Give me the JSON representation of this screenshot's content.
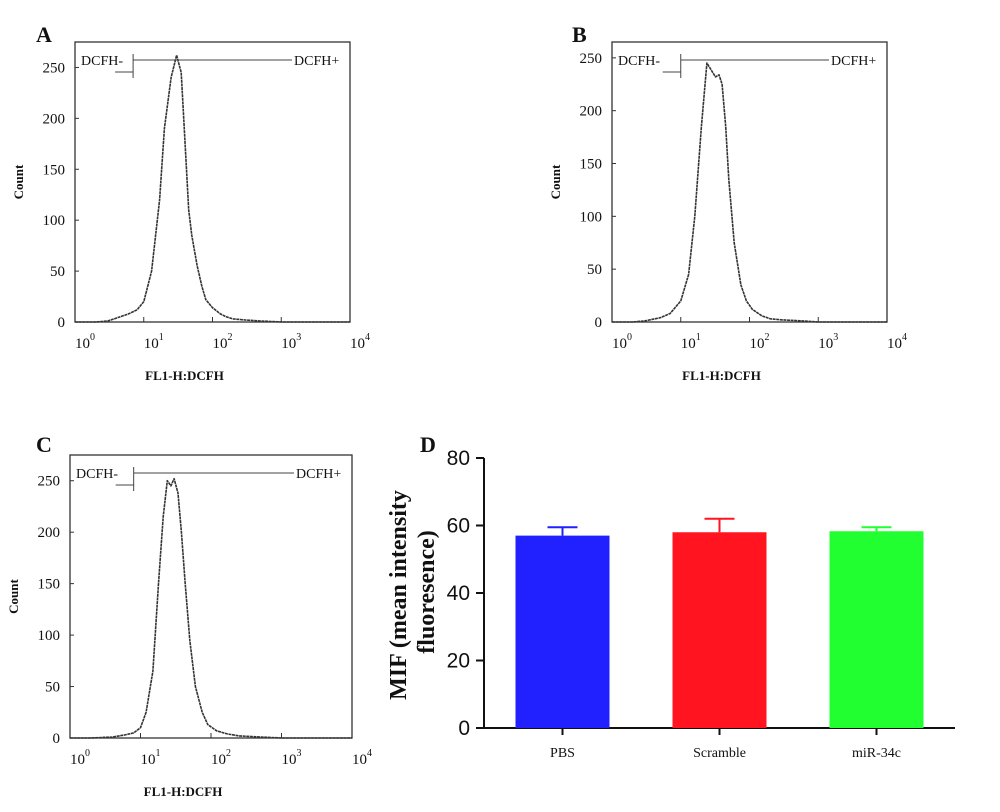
{
  "chart_data": [
    {
      "panel": "A",
      "type": "line",
      "xlabel": "FL1-H:DCFH",
      "ylabel": "Count",
      "xscale": "log",
      "xlim": [
        1,
        10000
      ],
      "ylim": [
        0,
        275
      ],
      "xticks": [
        {
          "base": "10",
          "exp": "0"
        },
        {
          "base": "10",
          "exp": "1"
        },
        {
          "base": "10",
          "exp": "2"
        },
        {
          "base": "10",
          "exp": "3"
        },
        {
          "base": "10",
          "exp": "4"
        }
      ],
      "yticks": [
        0,
        50,
        100,
        150,
        200,
        250
      ],
      "gate": {
        "left_label": "DCFH-",
        "right_label": "DCFH+",
        "threshold_x": 7
      },
      "series": [
        {
          "x": [
            1,
            2,
            3,
            4.5,
            6,
            8,
            10,
            13,
            17,
            20,
            25,
            30,
            35,
            40,
            45,
            50,
            60,
            70,
            80,
            100,
            130,
            160,
            200,
            300,
            500,
            1000,
            10000
          ],
          "y": [
            0,
            0,
            1,
            5,
            8,
            12,
            20,
            50,
            120,
            190,
            240,
            262,
            245,
            175,
            110,
            85,
            55,
            35,
            22,
            14,
            8,
            5,
            3,
            2,
            1,
            0,
            0
          ]
        }
      ]
    },
    {
      "panel": "B",
      "type": "line",
      "xlabel": "FL1-H:DCFH",
      "ylabel": "Count",
      "xscale": "log",
      "xlim": [
        1,
        10000
      ],
      "ylim": [
        0,
        265
      ],
      "xticks": [
        {
          "base": "10",
          "exp": "0"
        },
        {
          "base": "10",
          "exp": "1"
        },
        {
          "base": "10",
          "exp": "2"
        },
        {
          "base": "10",
          "exp": "3"
        },
        {
          "base": "10",
          "exp": "4"
        }
      ],
      "yticks": [
        0,
        50,
        100,
        150,
        200,
        250
      ],
      "gate": {
        "left_label": "DCFH-",
        "right_label": "DCFH+",
        "threshold_x": 10
      },
      "series": [
        {
          "x": [
            1,
            2,
            3,
            5,
            7,
            10,
            13,
            16,
            20,
            24,
            28,
            32,
            36,
            40,
            45,
            50,
            60,
            75,
            90,
            110,
            150,
            200,
            300,
            600,
            1000,
            10000
          ],
          "y": [
            0,
            0,
            1,
            4,
            8,
            20,
            45,
            100,
            185,
            245,
            238,
            232,
            234,
            225,
            185,
            135,
            75,
            35,
            20,
            12,
            6,
            3,
            2,
            1,
            0,
            0
          ]
        }
      ]
    },
    {
      "panel": "C",
      "type": "line",
      "xlabel": "FL1-H:DCFH",
      "ylabel": "Count",
      "xscale": "log",
      "xlim": [
        1,
        10000
      ],
      "ylim": [
        0,
        275
      ],
      "xticks": [
        {
          "base": "10",
          "exp": "0"
        },
        {
          "base": "10",
          "exp": "1"
        },
        {
          "base": "10",
          "exp": "2"
        },
        {
          "base": "10",
          "exp": "3"
        },
        {
          "base": "10",
          "exp": "4"
        }
      ],
      "yticks": [
        0,
        50,
        100,
        150,
        200,
        250
      ],
      "gate": {
        "left_label": "DCFH-",
        "right_label": "DCFH+",
        "threshold_x": 8
      },
      "series": [
        {
          "x": [
            1,
            2,
            4,
            6,
            8,
            10,
            12,
            15,
            18,
            21,
            24,
            27,
            30,
            34,
            38,
            43,
            50,
            60,
            75,
            90,
            120,
            170,
            250,
            500,
            1000,
            10000
          ],
          "y": [
            0,
            0,
            1,
            3,
            5,
            10,
            25,
            65,
            150,
            215,
            250,
            245,
            252,
            238,
            200,
            150,
            95,
            50,
            25,
            13,
            7,
            4,
            2,
            1,
            0,
            0
          ]
        }
      ]
    },
    {
      "panel": "D",
      "type": "bar",
      "ylabel": "MIF (mean intensity fluoresence)",
      "ylabel_lines": [
        "MIF (mean intensity",
        "fluoresence)"
      ],
      "ylim": [
        0,
        80
      ],
      "yticks": [
        0,
        20,
        40,
        60,
        80
      ],
      "categories": [
        "PBS",
        "Scramble",
        "miR-34c"
      ],
      "values": [
        57,
        58,
        58.3
      ],
      "errors": [
        2.5,
        4,
        1.2
      ],
      "colors": [
        "#2121ff",
        "#ff1420",
        "#21ff30"
      ]
    }
  ]
}
